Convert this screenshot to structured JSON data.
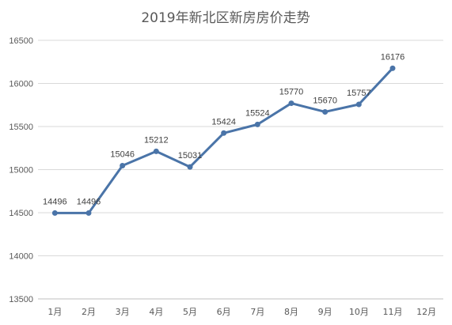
{
  "chart_data": {
    "type": "line",
    "title": "2019年新北区新房房价走势",
    "categories": [
      "1月",
      "2月",
      "3月",
      "4月",
      "5月",
      "6月",
      "7月",
      "8月",
      "9月",
      "10月",
      "11月",
      "12月"
    ],
    "series": [
      {
        "values": [
          14496,
          14496,
          15046,
          15212,
          15031,
          15424,
          15524,
          15770,
          15670,
          15757,
          16176,
          null
        ]
      }
    ],
    "data_labels": [
      "14496",
      "14496",
      "15046",
      "15212",
      "15031",
      "15424",
      "15524",
      "15770",
      "15670",
      "15757",
      "16176",
      ""
    ],
    "ylim": [
      13500,
      16500
    ],
    "yticks": [
      "13500",
      "14000",
      "14500",
      "15000",
      "15500",
      "16000",
      "16500"
    ],
    "grid": true,
    "legend": "none",
    "colors": {
      "line": "#4a74a8",
      "background": "#ffffff"
    }
  }
}
